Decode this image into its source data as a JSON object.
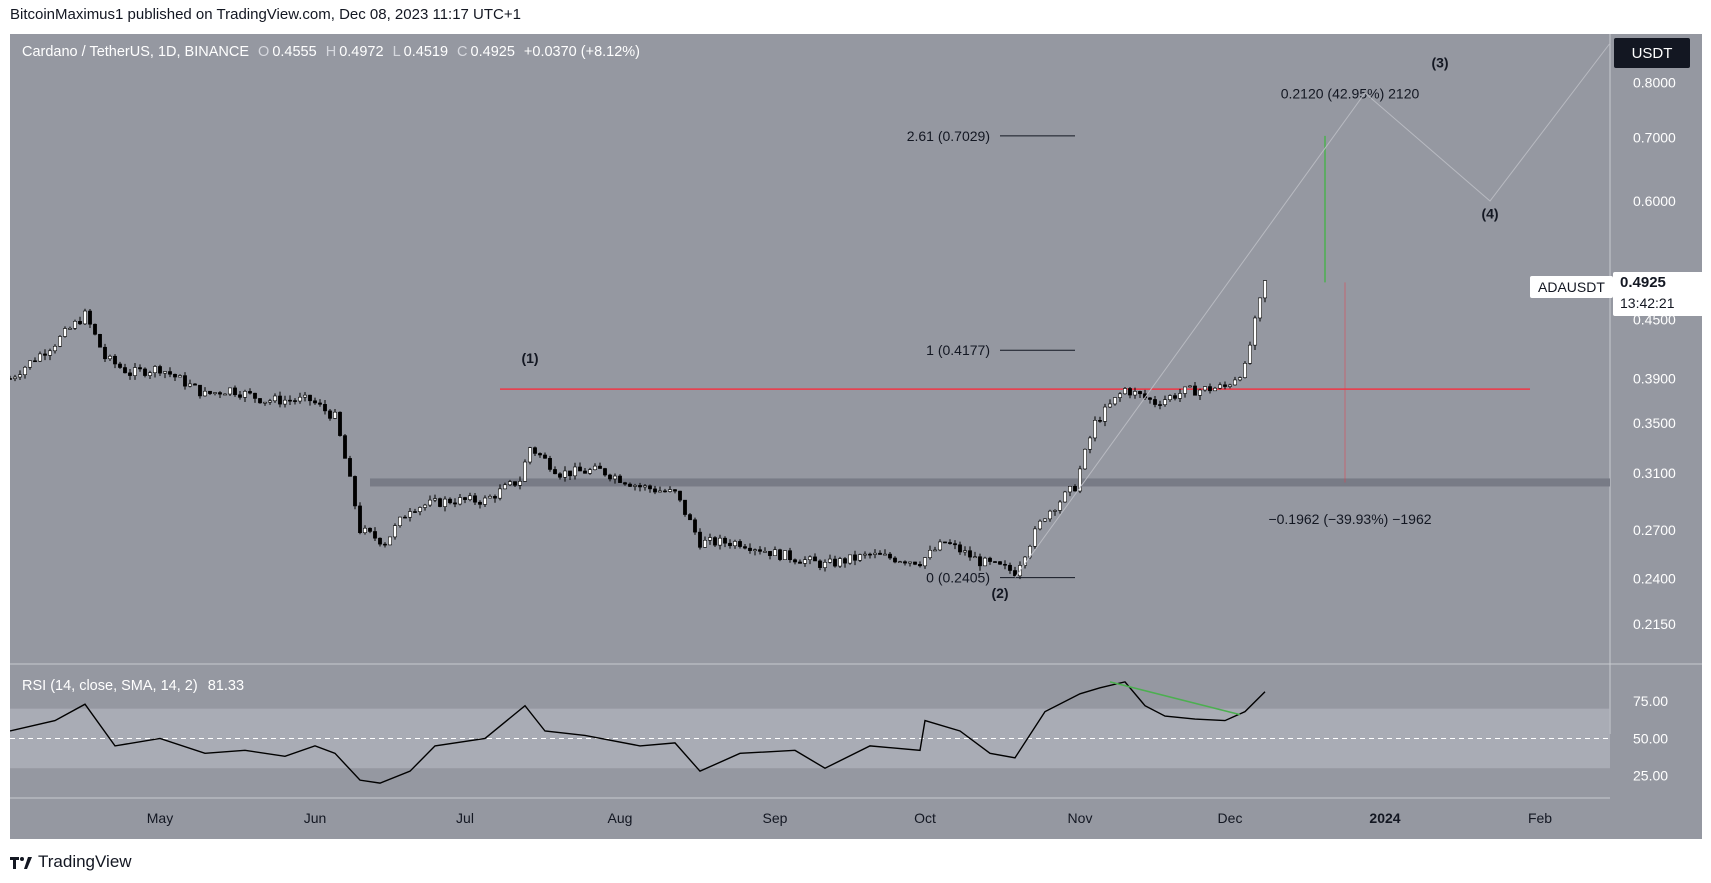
{
  "publisher": "BitcoinMaximus1 published on TradingView.com, Dec 08, 2023 11:17 UTC+1",
  "brand": "TradingView",
  "symbol_title": "Cardano / TetherUS, 1D, BINANCE",
  "ohlc": {
    "o_label": "O",
    "o": "0.4555",
    "h_label": "H",
    "h": "0.4972",
    "l_label": "L",
    "l": "0.4519",
    "c_label": "C",
    "c": "0.4925",
    "change": "+0.0370 (+8.12%)"
  },
  "price_axis_unit": "USDT",
  "last_price": {
    "ticker": "ADAUSDT",
    "price": "0.4925",
    "countdown": "13:42:21"
  },
  "colors": {
    "background": "#9598a1",
    "up": "#ffffff",
    "down": "#000000",
    "resistance": "#f23645",
    "support_band": "#787b86",
    "target_line": "#4caf50",
    "rsi_line": "#000000",
    "rsi_band": "#b2b5be",
    "rsi_divergence": "#4caf50"
  },
  "chart_data": [
    {
      "type": "candlestick",
      "title": "Cardano / TetherUS, 1D, BINANCE",
      "y_axis": {
        "scale": "log",
        "ticks": [
          "0.8000",
          "0.7000",
          "0.6000",
          "0.4500",
          "0.3900",
          "0.3500",
          "0.3100",
          "0.2700",
          "0.2400",
          "0.2150"
        ],
        "range": [
          0.195,
          0.9
        ]
      },
      "x_axis": {
        "ticks": [
          "May",
          "Jun",
          "Jul",
          "Aug",
          "Sep",
          "Oct",
          "Nov",
          "Dec",
          "2024",
          "Feb"
        ],
        "range": [
          "2023-04-01",
          "2024-02-15"
        ]
      },
      "series": [
        {
          "values": [
            {
              "x": "2023-04-01",
              "close": 0.39
            },
            {
              "x": "2023-04-10",
              "close": 0.425
            },
            {
              "x": "2023-04-16",
              "close": 0.455
            },
            {
              "x": "2023-04-20",
              "close": 0.41
            },
            {
              "x": "2023-04-25",
              "close": 0.395
            },
            {
              "x": "2023-05-01",
              "close": 0.4
            },
            {
              "x": "2023-05-10",
              "close": 0.375
            },
            {
              "x": "2023-05-15",
              "close": 0.38
            },
            {
              "x": "2023-05-22",
              "close": 0.37
            },
            {
              "x": "2023-05-31",
              "close": 0.37
            },
            {
              "x": "2023-06-05",
              "close": 0.355
            },
            {
              "x": "2023-06-10",
              "close": 0.27
            },
            {
              "x": "2023-06-15",
              "close": 0.262
            },
            {
              "x": "2023-06-20",
              "close": 0.285
            },
            {
              "x": "2023-06-28",
              "close": 0.29
            },
            {
              "x": "2023-07-05",
              "close": 0.29
            },
            {
              "x": "2023-07-12",
              "close": 0.305
            },
            {
              "x": "2023-07-14",
              "close": 0.33
            },
            {
              "x": "2023-07-20",
              "close": 0.31
            },
            {
              "x": "2023-07-28",
              "close": 0.312
            },
            {
              "x": "2023-08-05",
              "close": 0.3
            },
            {
              "x": "2023-08-12",
              "close": 0.295
            },
            {
              "x": "2023-08-17",
              "close": 0.262
            },
            {
              "x": "2023-08-25",
              "close": 0.262
            },
            {
              "x": "2023-09-01",
              "close": 0.255
            },
            {
              "x": "2023-09-11",
              "close": 0.248
            },
            {
              "x": "2023-09-20",
              "close": 0.254
            },
            {
              "x": "2023-09-30",
              "close": 0.25
            },
            {
              "x": "2023-10-05",
              "close": 0.262
            },
            {
              "x": "2023-10-12",
              "close": 0.25
            },
            {
              "x": "2023-10-19",
              "close": 0.244
            },
            {
              "x": "2023-10-25",
              "close": 0.28
            },
            {
              "x": "2023-10-31",
              "close": 0.3
            },
            {
              "x": "2023-11-04",
              "close": 0.35
            },
            {
              "x": "2023-11-10",
              "close": 0.38
            },
            {
              "x": "2023-11-16",
              "close": 0.368
            },
            {
              "x": "2023-11-22",
              "close": 0.378
            },
            {
              "x": "2023-11-30",
              "close": 0.382
            },
            {
              "x": "2023-12-04",
              "close": 0.4
            },
            {
              "x": "2023-12-08",
              "close": 0.4925
            }
          ]
        }
      ],
      "annotations": [
        {
          "text": "(1)",
          "x": "2023-07-14",
          "y": 0.405
        },
        {
          "text": "(2)",
          "x": "2023-10-16",
          "y": 0.229
        },
        {
          "text": "(3)",
          "x": "2024-01-12",
          "y": 0.83
        },
        {
          "text": "(4)",
          "x": "2024-01-22",
          "y": 0.575
        },
        {
          "text": "2.61 (0.7029)",
          "x": "2023-09-25",
          "y": 0.7029
        },
        {
          "text": "1 (0.4177)",
          "x": "2023-09-25",
          "y": 0.4177
        },
        {
          "text": "0 (0.2405)",
          "x": "2023-09-25",
          "y": 0.2405
        },
        {
          "text": "0.2120 (42.95%) 2120",
          "x": "2023-12-25",
          "y": 0.77
        },
        {
          "text": "−0.1962 (−39.93%) −1962",
          "x": "2023-12-25",
          "y": 0.274
        }
      ],
      "levels": [
        {
          "name": "resistance",
          "y": 0.38
        },
        {
          "name": "support",
          "y": 0.303
        }
      ]
    },
    {
      "type": "line",
      "title": "RSI (14, close, SMA, 14, 2)",
      "value_label": "81.33",
      "y_axis": {
        "ticks": [
          "75.00",
          "50.00",
          "25.00"
        ],
        "range": [
          10,
          100
        ],
        "band": [
          30,
          70
        ],
        "midline": 50
      },
      "series": [
        {
          "values": [
            {
              "x": "2023-04-01",
              "y": 55
            },
            {
              "x": "2023-04-10",
              "y": 62
            },
            {
              "x": "2023-04-16",
              "y": 73
            },
            {
              "x": "2023-04-22",
              "y": 45
            },
            {
              "x": "2023-05-01",
              "y": 50
            },
            {
              "x": "2023-05-10",
              "y": 40
            },
            {
              "x": "2023-05-18",
              "y": 42
            },
            {
              "x": "2023-05-26",
              "y": 38
            },
            {
              "x": "2023-06-01",
              "y": 45
            },
            {
              "x": "2023-06-05",
              "y": 40
            },
            {
              "x": "2023-06-10",
              "y": 22
            },
            {
              "x": "2023-06-14",
              "y": 20
            },
            {
              "x": "2023-06-20",
              "y": 28
            },
            {
              "x": "2023-06-25",
              "y": 45
            },
            {
              "x": "2023-07-05",
              "y": 50
            },
            {
              "x": "2023-07-13",
              "y": 72
            },
            {
              "x": "2023-07-17",
              "y": 55
            },
            {
              "x": "2023-07-25",
              "y": 52
            },
            {
              "x": "2023-08-05",
              "y": 45
            },
            {
              "x": "2023-08-12",
              "y": 47
            },
            {
              "x": "2023-08-17",
              "y": 28
            },
            {
              "x": "2023-08-25",
              "y": 40
            },
            {
              "x": "2023-09-05",
              "y": 42
            },
            {
              "x": "2023-09-11",
              "y": 30
            },
            {
              "x": "2023-09-20",
              "y": 45
            },
            {
              "x": "2023-09-30",
              "y": 42
            },
            {
              "x": "2023-10-01",
              "y": 62
            },
            {
              "x": "2023-10-08",
              "y": 55
            },
            {
              "x": "2023-10-14",
              "y": 40
            },
            {
              "x": "2023-10-19",
              "y": 37
            },
            {
              "x": "2023-10-25",
              "y": 68
            },
            {
              "x": "2023-11-01",
              "y": 80
            },
            {
              "x": "2023-11-05",
              "y": 84
            },
            {
              "x": "2023-11-10",
              "y": 88
            },
            {
              "x": "2023-11-14",
              "y": 72
            },
            {
              "x": "2023-11-18",
              "y": 65
            },
            {
              "x": "2023-11-24",
              "y": 63
            },
            {
              "x": "2023-11-30",
              "y": 62
            },
            {
              "x": "2023-12-04",
              "y": 68
            },
            {
              "x": "2023-12-08",
              "y": 81.33
            }
          ]
        }
      ]
    }
  ]
}
